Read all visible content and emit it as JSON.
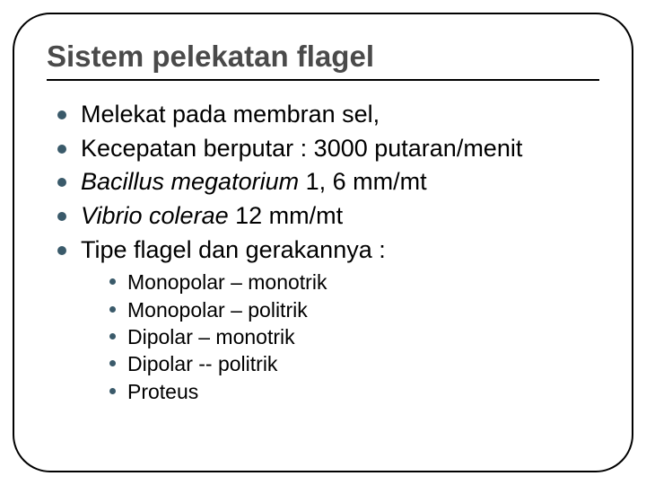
{
  "title": "Sistem pelekatan flagel",
  "bullets": [
    {
      "text": "Melekat pada membran sel,",
      "italic": false
    },
    {
      "text": "Kecepatan berputar : 3000 putaran/menit",
      "italic": false
    },
    {
      "prefix": "Bacillus megatorium",
      "suffix": " 1, 6 mm/mt",
      "italic_prefix": true
    },
    {
      "prefix": "Vibrio colerae",
      "suffix": " 12 mm/mt",
      "italic_prefix": true
    },
    {
      "text": "Tipe flagel dan gerakannya :",
      "italic": false
    }
  ],
  "subbullets": [
    "Monopolar – monotrik",
    "Monopolar – politrik",
    "Dipolar – monotrik",
    "Dipolar -- politrik",
    "Proteus"
  ],
  "colors": {
    "title_color": "#4a4a4a",
    "bullet_color": "#3a5a6a",
    "border_color": "#000000",
    "background": "#ffffff"
  },
  "typography": {
    "title_fontsize": 33,
    "main_fontsize": 27,
    "sub_fontsize": 23,
    "font_family": "Arial"
  }
}
